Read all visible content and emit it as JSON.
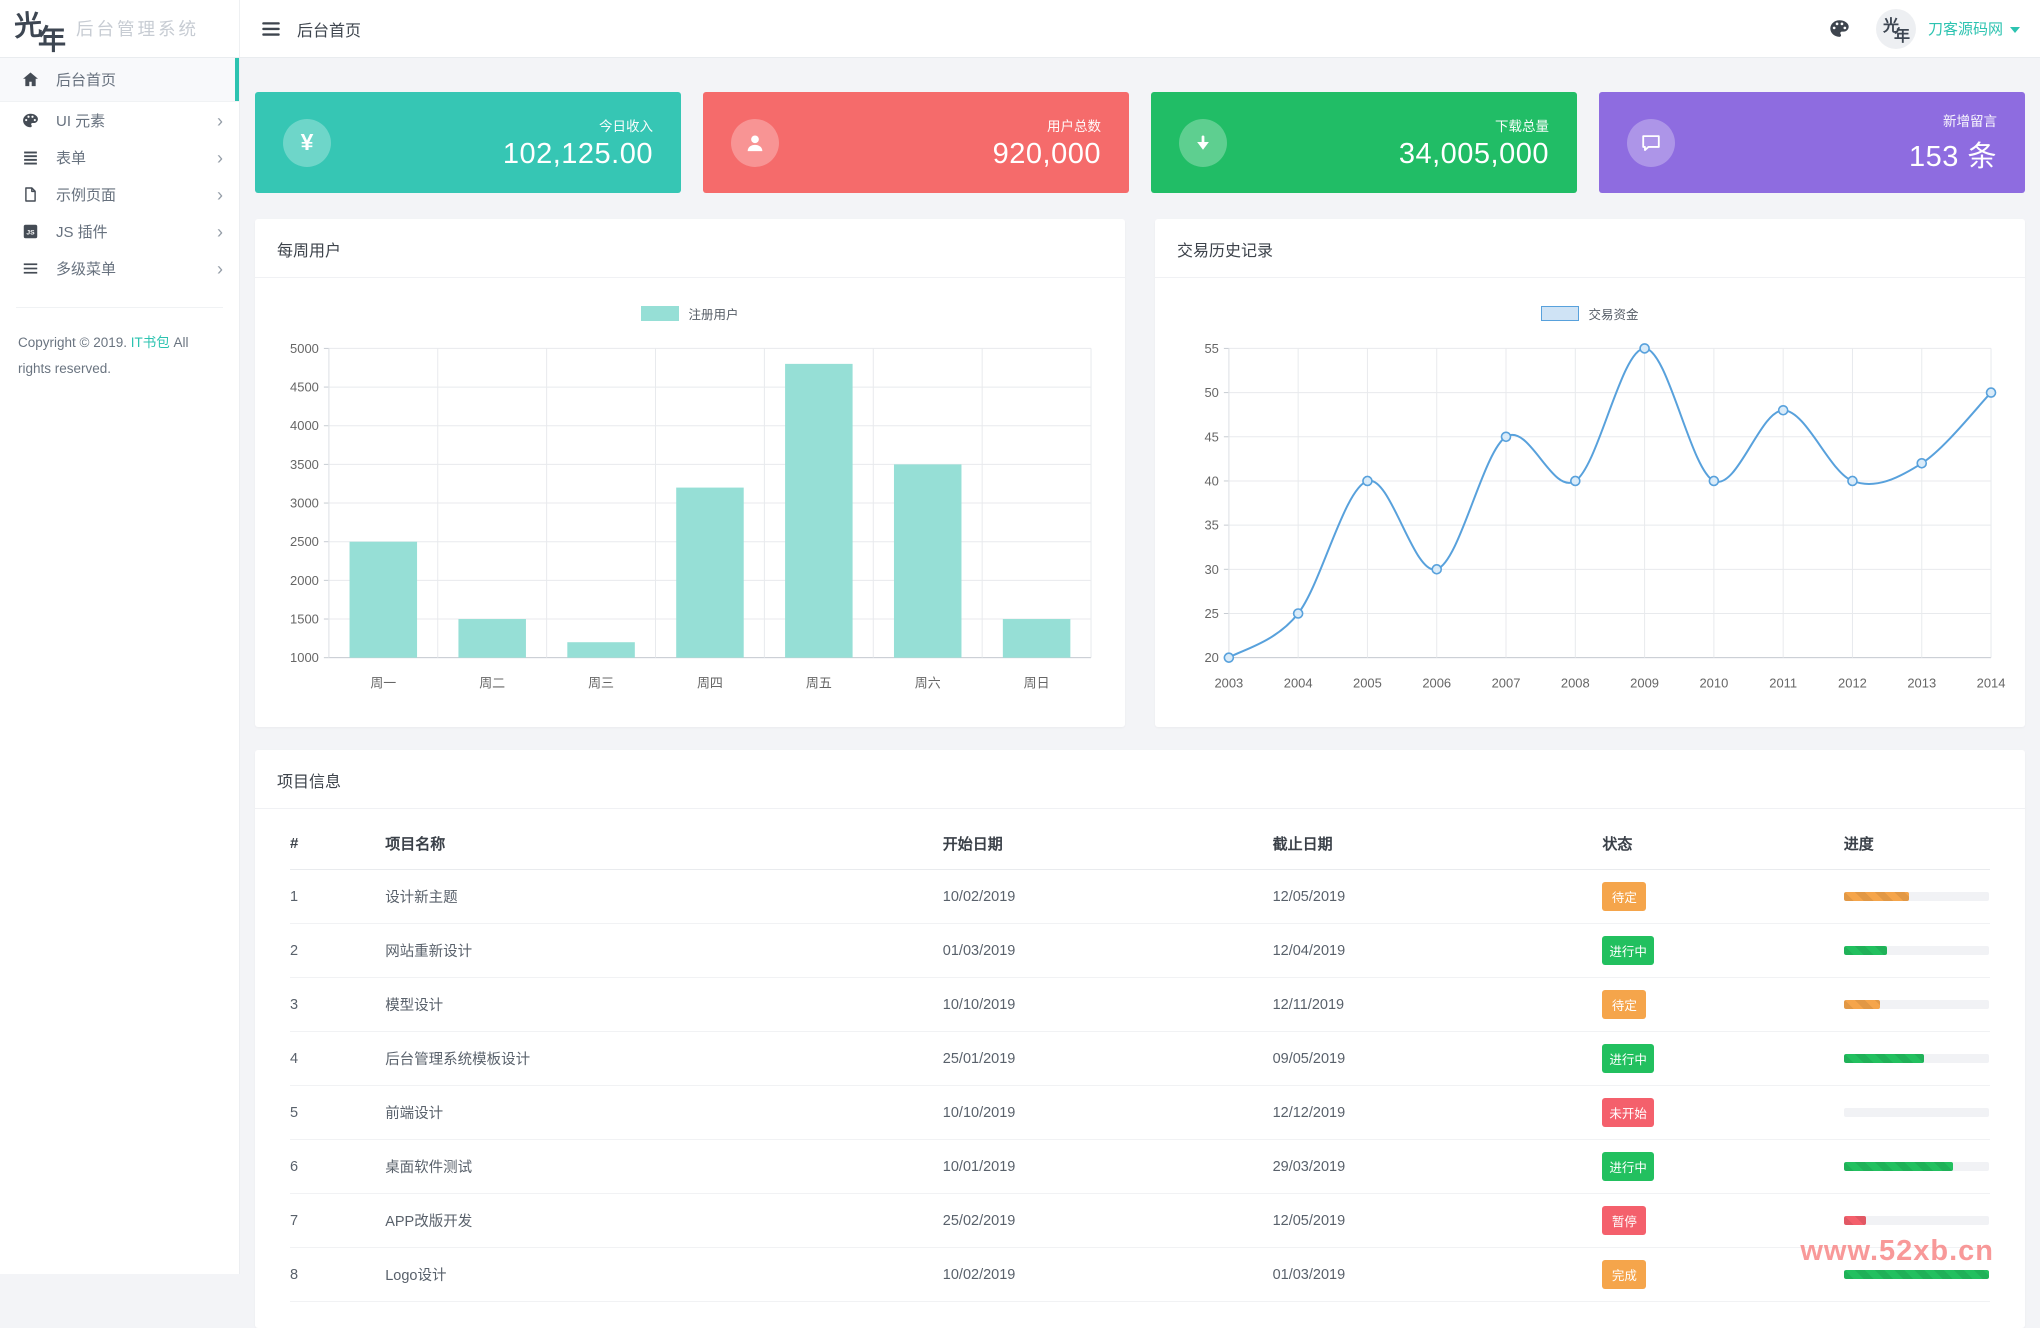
{
  "app": {
    "logo_mark_1": "光",
    "logo_mark_2": "年",
    "logo_text": "后台管理系统"
  },
  "header": {
    "breadcrumb": "后台首页",
    "user_name": "刀客源码网"
  },
  "sidebar": {
    "items": [
      {
        "label": "后台首页",
        "icon": "home",
        "active": true,
        "arrow": false
      },
      {
        "label": "UI 元素",
        "icon": "palette",
        "active": false,
        "arrow": true
      },
      {
        "label": "表单",
        "icon": "form",
        "active": false,
        "arrow": true
      },
      {
        "label": "示例页面",
        "icon": "page",
        "active": false,
        "arrow": true
      },
      {
        "label": "JS 插件",
        "icon": "js",
        "active": false,
        "arrow": true
      },
      {
        "label": "多级菜单",
        "icon": "menu",
        "active": false,
        "arrow": true
      }
    ],
    "copyright_prefix": "Copyright © 2019.",
    "copyright_link": "IT书包",
    "copyright_suffix": "All rights reserved."
  },
  "colors": {
    "accent": "#2cc3b0",
    "orange": "#f5a54b",
    "green": "#22c05f",
    "red": "#f4606c"
  },
  "cards": [
    {
      "label": "今日收入",
      "value": "102,125.00",
      "icon": "yen",
      "color": "#36c6b4"
    },
    {
      "label": "用户总数",
      "value": "920,000",
      "icon": "user",
      "color": "#f56b6b"
    },
    {
      "label": "下载总量",
      "value": "34,005,000",
      "icon": "download",
      "color": "#21bd66"
    },
    {
      "label": "新增留言",
      "value": "153 条",
      "icon": "comment",
      "color": "#8e6ce0"
    }
  ],
  "chart_data": [
    {
      "type": "bar",
      "title": "每周用户",
      "legend": [
        "注册用户"
      ],
      "legend_position": "top",
      "categories": [
        "周一",
        "周二",
        "周三",
        "周四",
        "周五",
        "周六",
        "周日"
      ],
      "values": [
        2500,
        1500,
        1200,
        3200,
        4800,
        3500,
        1500
      ],
      "ylabel": "",
      "xlabel": "",
      "ylim": [
        1000,
        5000
      ],
      "ytick_step": 500,
      "grid": true,
      "bar_color": "#96dfd6"
    },
    {
      "type": "line",
      "title": "交易历史记录",
      "legend": [
        "交易资金"
      ],
      "legend_position": "top",
      "x": [
        2003,
        2004,
        2005,
        2006,
        2007,
        2008,
        2009,
        2010,
        2011,
        2012,
        2013,
        2014
      ],
      "values": [
        20,
        25,
        40,
        30,
        45,
        40,
        55,
        40,
        48,
        40,
        42,
        50
      ],
      "ylabel": "",
      "xlabel": "",
      "ylim": [
        20,
        55
      ],
      "ytick_step": 5,
      "grid": true,
      "line_color": "#58a1dc",
      "marker_fill": "#d9ebf9",
      "legend_swatch_fill": "#cfe3f5"
    }
  ],
  "table": {
    "title": "项目信息",
    "headers": [
      "#",
      "项目名称",
      "开始日期",
      "截止日期",
      "状态",
      "进度"
    ],
    "rows": [
      {
        "num": "1",
        "name": "设计新主题",
        "start": "10/02/2019",
        "end": "12/05/2019",
        "status": "待定",
        "status_color": "orange",
        "progress": 45,
        "progress_color": "orange"
      },
      {
        "num": "2",
        "name": "网站重新设计",
        "start": "01/03/2019",
        "end": "12/04/2019",
        "status": "进行中",
        "status_color": "green",
        "progress": 30,
        "progress_color": "green"
      },
      {
        "num": "3",
        "name": "模型设计",
        "start": "10/10/2019",
        "end": "12/11/2019",
        "status": "待定",
        "status_color": "orange",
        "progress": 25,
        "progress_color": "orange"
      },
      {
        "num": "4",
        "name": "后台管理系统模板设计",
        "start": "25/01/2019",
        "end": "09/05/2019",
        "status": "进行中",
        "status_color": "green",
        "progress": 55,
        "progress_color": "green"
      },
      {
        "num": "5",
        "name": "前端设计",
        "start": "10/10/2019",
        "end": "12/12/2019",
        "status": "未开始",
        "status_color": "red",
        "progress": 0,
        "progress_color": "green"
      },
      {
        "num": "6",
        "name": "桌面软件测试",
        "start": "10/01/2019",
        "end": "29/03/2019",
        "status": "进行中",
        "status_color": "green",
        "progress": 75,
        "progress_color": "green"
      },
      {
        "num": "7",
        "name": "APP改版开发",
        "start": "25/02/2019",
        "end": "12/05/2019",
        "status": "暂停",
        "status_color": "red",
        "progress": 15,
        "progress_color": "red"
      },
      {
        "num": "8",
        "name": "Logo设计",
        "start": "10/02/2019",
        "end": "01/03/2019",
        "status": "完成",
        "status_color": "orange",
        "progress": 100,
        "progress_color": "green"
      }
    ]
  },
  "watermark": "www.52xb.cn"
}
